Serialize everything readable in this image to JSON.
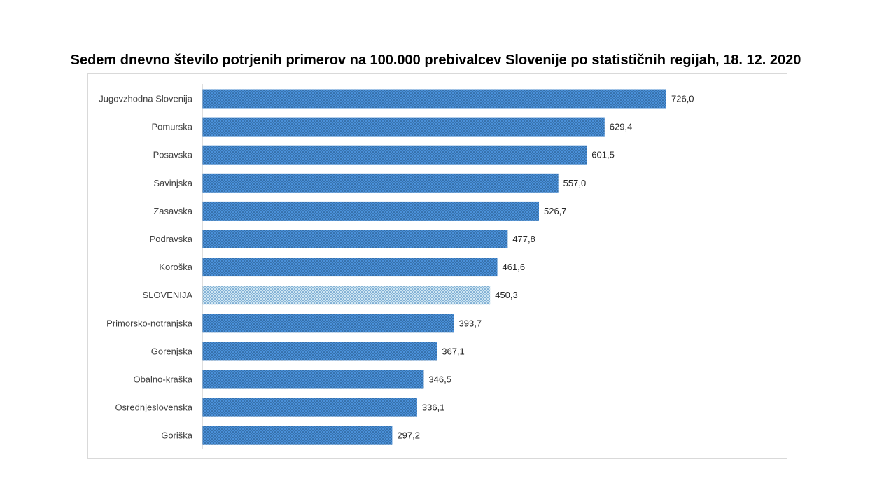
{
  "chart_data": {
    "type": "bar",
    "orientation": "horizontal",
    "title": "Sedem dnevno število potrjenih primerov na 100.000 prebivalcev Slovenije po statističnih regijah, 18. 12. 2020",
    "xlabel": "",
    "ylabel": "",
    "xlim": [
      0,
      770
    ],
    "grid": false,
    "legend": "none",
    "categories": [
      "Jugovzhodna Slovenija",
      "Pomurska",
      "Posavska",
      "Savinjska",
      "Zasavska",
      "Podravska",
      "Koroška",
      "SLOVENIJA",
      "Primorsko-notranjska",
      "Gorenjska",
      "Obalno-kraška",
      "Osrednjeslovenska",
      "Goriška"
    ],
    "values": [
      726.0,
      629.4,
      601.5,
      557.0,
      526.7,
      477.8,
      461.6,
      450.3,
      393.7,
      367.1,
      346.5,
      336.1,
      297.2
    ],
    "value_labels": [
      "726,0",
      "629,4",
      "601,5",
      "557,0",
      "526,7",
      "477,8",
      "461,6",
      "450,3",
      "393,7",
      "367,1",
      "346,5",
      "336,1",
      "297,2"
    ],
    "highlight_category": "SLOVENIJA",
    "colors": {
      "bar": "#4a90d9",
      "bar_dots": "#1f4e79",
      "highlight": "#cfe6f2",
      "highlight_dots": "#2e75b6",
      "axis": "#bfbfbf"
    }
  }
}
